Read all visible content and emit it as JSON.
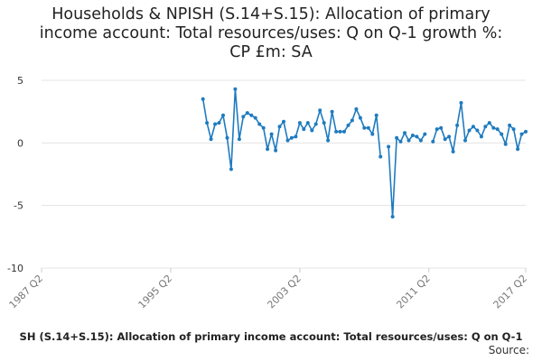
{
  "chart_data": {
    "type": "line",
    "title_lines": [
      "Households & NPISH (S.14+S.15): Allocation of primary",
      "income account: Total resources/uses: Q on Q-1 growth %:",
      "CP £m: SA"
    ],
    "xlabel": "",
    "ylabel": "",
    "ylim": [
      -10,
      5
    ],
    "yticks": [
      5,
      0,
      -5,
      -10
    ],
    "ytick_labels": [
      "5",
      "0",
      "-5",
      "-10"
    ],
    "xlim": [
      "1987 Q2",
      "2017 Q2"
    ],
    "xticks": [
      "1987 Q2",
      "1995 Q2",
      "2003 Q2",
      "2011 Q2",
      "2017 Q2"
    ],
    "grid": true,
    "series_color": "#1f7bbf",
    "series": [
      {
        "x": [
          "1997 Q2",
          "1997 Q3",
          "1997 Q4",
          "1998 Q1",
          "1998 Q2",
          "1998 Q3",
          "1998 Q4",
          "1999 Q1",
          "1999 Q2",
          "1999 Q3",
          "1999 Q4",
          "2000 Q1",
          "2000 Q2",
          "2000 Q3",
          "2000 Q4",
          "2001 Q1",
          "2001 Q2",
          "2001 Q3",
          "2001 Q4",
          "2002 Q1",
          "2002 Q2",
          "2002 Q3",
          "2002 Q4",
          "2003 Q1",
          "2003 Q2",
          "2003 Q3",
          "2003 Q4",
          "2004 Q1",
          "2004 Q2",
          "2004 Q3",
          "2004 Q4",
          "2005 Q1",
          "2005 Q2",
          "2005 Q3",
          "2005 Q4",
          "2006 Q1",
          "2006 Q2",
          "2006 Q3",
          "2006 Q4",
          "2007 Q1",
          "2007 Q2",
          "2007 Q3",
          "2007 Q4",
          "2008 Q1",
          "2008 Q2",
          null,
          "2008 Q4",
          "2009 Q1",
          "2009 Q2",
          "2009 Q3",
          "2009 Q4",
          "2010 Q1",
          "2010 Q2",
          "2010 Q3",
          "2010 Q4",
          "2011 Q1",
          null,
          "2011 Q3",
          "2011 Q4",
          "2012 Q1",
          "2012 Q2",
          "2012 Q3",
          "2012 Q4",
          "2013 Q1",
          "2013 Q2",
          "2013 Q3",
          "2013 Q4",
          "2014 Q1",
          "2014 Q2",
          "2014 Q3",
          "2014 Q4",
          "2015 Q1",
          "2015 Q2",
          "2015 Q3",
          "2015 Q4",
          "2016 Q1",
          "2016 Q2",
          "2016 Q3",
          "2016 Q4",
          "2017 Q1",
          "2017 Q2"
        ],
        "y": [
          3.5,
          1.6,
          0.3,
          1.5,
          1.6,
          2.2,
          0.4,
          -2.1,
          4.3,
          0.3,
          2.1,
          2.4,
          2.2,
          2.0,
          1.5,
          1.2,
          -0.5,
          0.7,
          -0.6,
          1.3,
          1.7,
          0.2,
          0.4,
          0.5,
          1.6,
          1.1,
          1.6,
          1.0,
          1.5,
          2.6,
          1.6,
          0.2,
          2.5,
          0.9,
          0.9,
          0.9,
          1.4,
          1.8,
          2.7,
          2.0,
          1.2,
          1.2,
          0.7,
          2.2,
          -1.1,
          null,
          -0.3,
          -5.9,
          0.4,
          0.1,
          0.8,
          0.2,
          0.6,
          0.5,
          0.2,
          0.7,
          null,
          0.1,
          1.1,
          1.2,
          0.3,
          0.5,
          -0.7,
          1.4,
          3.2,
          0.2,
          1.0,
          1.3,
          1.0,
          0.5,
          1.3,
          1.6,
          1.2,
          1.1,
          0.7,
          -0.1,
          1.4,
          1.1,
          -0.5,
          0.7,
          0.9
        ]
      }
    ]
  },
  "footer": {
    "series_description": "SH (S.14+S.15): Allocation of primary income account: Total resources/uses: Q on Q-1",
    "source_label": "Source:"
  }
}
